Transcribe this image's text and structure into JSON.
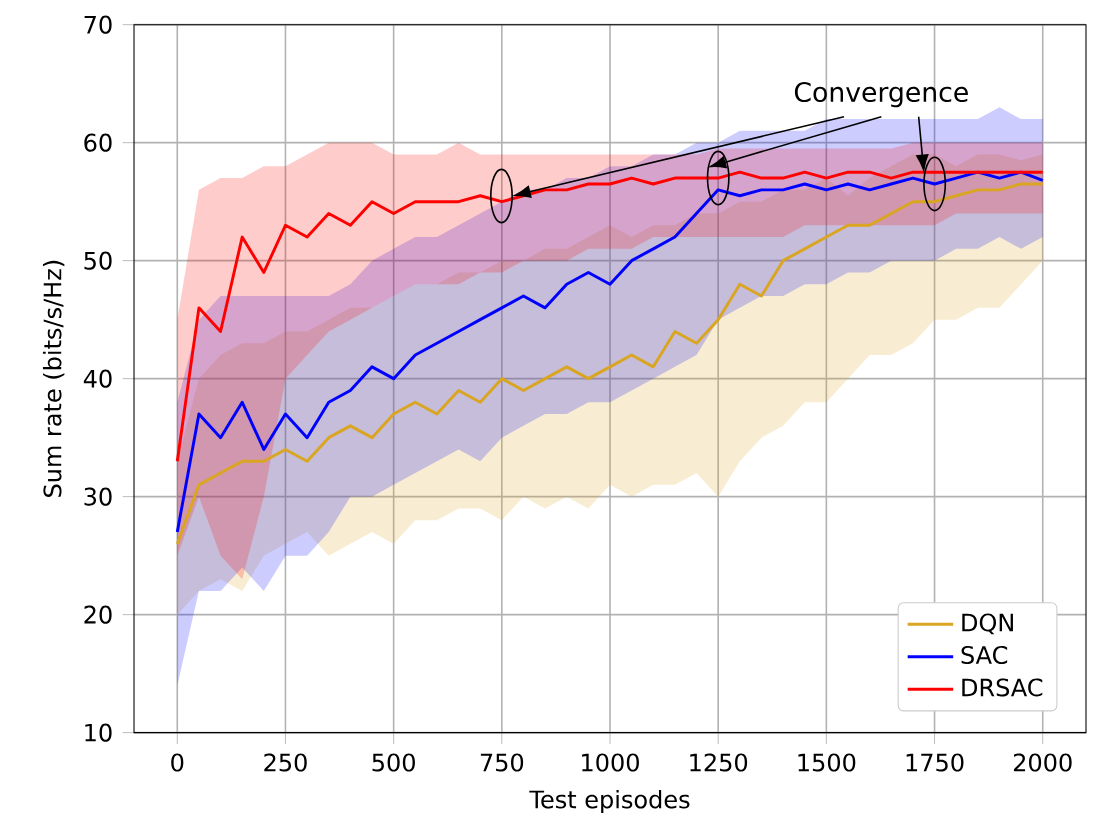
{
  "chart_data": {
    "type": "line",
    "xlabel": "Test episodes",
    "ylabel": "Sum rate (bits/s/Hz)",
    "x": [
      0,
      50,
      100,
      150,
      200,
      250,
      300,
      350,
      400,
      450,
      500,
      550,
      600,
      650,
      700,
      750,
      800,
      850,
      900,
      950,
      1000,
      1050,
      1100,
      1150,
      1200,
      1250,
      1300,
      1350,
      1400,
      1450,
      1500,
      1550,
      1600,
      1650,
      1700,
      1750,
      1800,
      1850,
      1900,
      1950,
      2000
    ],
    "series": [
      {
        "name": "DQN",
        "color": "#daa520",
        "values": [
          26,
          31,
          32,
          33,
          33,
          34,
          33,
          35,
          36,
          35,
          37,
          38,
          37,
          39,
          38,
          40,
          39,
          40,
          41,
          40,
          41,
          42,
          41,
          44,
          43,
          45,
          48,
          47,
          50,
          51,
          52,
          53,
          53,
          54,
          55,
          55,
          55.5,
          56,
          56,
          56.5,
          56.5
        ],
        "lower": [
          20,
          22,
          23,
          22,
          25,
          26,
          27,
          25,
          26,
          27,
          26,
          28,
          28,
          29,
          29,
          28,
          30,
          29,
          30,
          29,
          31,
          30,
          31,
          31,
          32,
          30,
          33,
          35,
          36,
          38,
          38,
          40,
          42,
          42,
          43,
          45,
          45,
          46,
          46,
          48,
          50
        ],
        "upper": [
          33,
          40,
          42,
          43,
          43,
          44,
          44,
          45,
          46,
          46,
          47,
          48,
          48,
          49,
          49,
          50,
          50,
          51,
          51,
          52,
          53,
          52,
          53,
          53,
          54,
          54,
          55,
          55,
          56,
          56,
          57,
          55.5,
          57,
          58,
          59,
          59,
          58,
          59,
          59,
          58.5,
          59
        ]
      },
      {
        "name": "SAC",
        "color": "#0000ff",
        "values": [
          27,
          37,
          35,
          38,
          34,
          37,
          35,
          38,
          39,
          41,
          40,
          42,
          43,
          44,
          45,
          46,
          47,
          46,
          48,
          49,
          48,
          50,
          51,
          52,
          54,
          56,
          55.5,
          56,
          56,
          56.5,
          56,
          56.5,
          56,
          56.5,
          57,
          56.5,
          57,
          57.5,
          57,
          57.5,
          56.8
        ],
        "lower": [
          14,
          22,
          22,
          24,
          22,
          25,
          25,
          27,
          30,
          30,
          31,
          32,
          33,
          34,
          33,
          35,
          36,
          37,
          37,
          38,
          38,
          39,
          40,
          41,
          42,
          45,
          46,
          47,
          47,
          48,
          48,
          49,
          49,
          50,
          50,
          50,
          51,
          51,
          52,
          51,
          52
        ],
        "upper": [
          38,
          45,
          47,
          47,
          47,
          47,
          47,
          47,
          48,
          50,
          51,
          52,
          52,
          53,
          54,
          55,
          56,
          56,
          57,
          57,
          58,
          58,
          59,
          59,
          60,
          60,
          61,
          61,
          61,
          61,
          62,
          62,
          62,
          62,
          62,
          62,
          62,
          62,
          63,
          62,
          62
        ]
      },
      {
        "name": "DRSAC",
        "color": "#ff0000",
        "values": [
          33,
          46,
          44,
          52,
          49,
          53,
          52,
          54,
          53,
          55,
          54,
          55,
          55,
          55,
          55.5,
          55,
          55.5,
          56,
          56,
          56.5,
          56.5,
          57,
          56.5,
          57,
          57,
          57,
          57.5,
          57,
          57,
          57.5,
          57,
          57.5,
          57.5,
          57,
          57.5,
          57.5,
          57.5,
          57.5,
          57.5,
          57.5,
          57.5
        ],
        "lower": [
          25,
          30,
          25,
          23,
          30,
          40,
          42,
          44,
          45,
          46,
          47,
          48,
          48,
          48,
          49,
          49,
          50,
          50,
          50,
          51,
          51,
          51,
          52,
          52,
          52,
          52,
          52,
          52,
          52,
          53,
          53,
          53,
          53,
          53,
          53,
          53,
          54,
          54,
          54,
          54,
          54
        ],
        "upper": [
          45,
          56,
          57,
          57,
          58,
          58,
          59,
          60,
          60,
          60,
          59,
          59,
          59,
          60,
          59,
          59,
          59,
          59,
          59,
          59,
          59,
          59,
          59,
          59,
          59,
          59.5,
          59.5,
          59.5,
          59.5,
          59.5,
          59.5,
          59.5,
          59.5,
          59.5,
          60,
          60,
          60,
          60,
          60,
          60,
          60
        ]
      }
    ],
    "xlim": [
      -100,
      2100
    ],
    "ylim": [
      10,
      70
    ],
    "xticks": [
      0,
      250,
      500,
      750,
      1000,
      1250,
      1500,
      1750,
      2000
    ],
    "yticks": [
      10,
      20,
      30,
      40,
      50,
      60,
      70
    ],
    "grid": true,
    "legend": "bottom right",
    "annotations": [
      {
        "text": "Convergence",
        "x": 1250,
        "y": 57
      }
    ]
  }
}
